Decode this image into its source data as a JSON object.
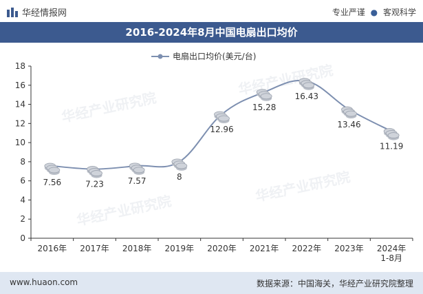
{
  "header": {
    "brand": "华经情报网",
    "tagline_left": "专业严谨",
    "tagline_right": "客观科学"
  },
  "footer": {
    "site": "www.huaon.com",
    "source": "数据来源：中国海关，华经产业研究院整理"
  },
  "watermark": "华经产业研究院",
  "colors": {
    "title_bg": "#3c5a8f",
    "line": "#7d8fb0",
    "coin": "#cfd3da",
    "footer_bg": "#dfe7f2"
  },
  "chart_data": {
    "type": "line",
    "title": "2016-2024年8月中国电扇出口均价",
    "categories": [
      "2016年",
      "2017年",
      "2018年",
      "2019年",
      "2020年",
      "2021年",
      "2022年",
      "2023年",
      "2024年\n1-8月"
    ],
    "series": [
      {
        "name": "电扇出口均价(美元/台)",
        "values": [
          7.56,
          7.23,
          7.57,
          8,
          12.96,
          15.28,
          16.43,
          13.46,
          11.19
        ]
      }
    ],
    "data_labels": [
      "7.56",
      "7.23",
      "7.57",
      "8",
      "12.96",
      "15.28",
      "16.43",
      "13.46",
      "11.19"
    ],
    "ylim": [
      0,
      18
    ],
    "yticks": [
      0,
      2,
      4,
      6,
      8,
      10,
      12,
      14,
      16,
      18
    ],
    "grid": false,
    "legend": "top-center"
  }
}
